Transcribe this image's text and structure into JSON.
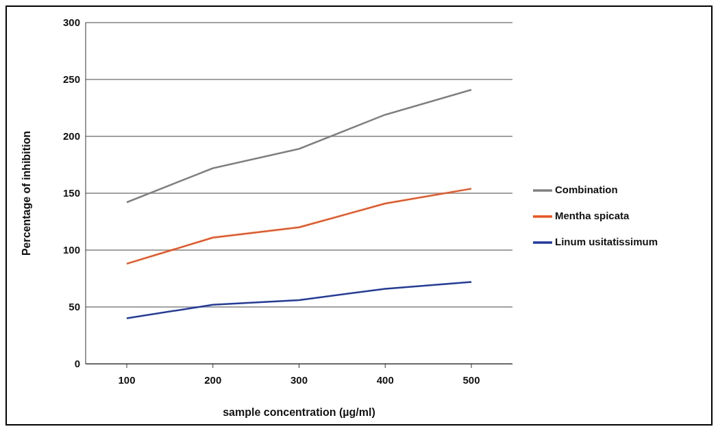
{
  "chart_data": {
    "type": "line",
    "xlabel": "sample concentration (µg/ml)",
    "ylabel": "Percentage of inhibition",
    "categories": [
      "100",
      "200",
      "300",
      "400",
      "500"
    ],
    "series": [
      {
        "name": "Combination",
        "color": "#808080",
        "values": [
          142,
          172,
          189,
          219,
          241
        ]
      },
      {
        "name": "Mentha spicata",
        "color": "#f5501a",
        "values": [
          88,
          111,
          120,
          141,
          154
        ]
      },
      {
        "name": "Linum usitatissimum",
        "color": "#1f3aa8",
        "values": [
          40,
          52,
          56,
          66,
          72
        ]
      }
    ],
    "ylim": [
      0,
      300
    ],
    "yticks": [
      0,
      50,
      100,
      150,
      200,
      250,
      300
    ],
    "grid": "y",
    "legend": "right",
    "marker": "none",
    "line_style": "solid"
  }
}
